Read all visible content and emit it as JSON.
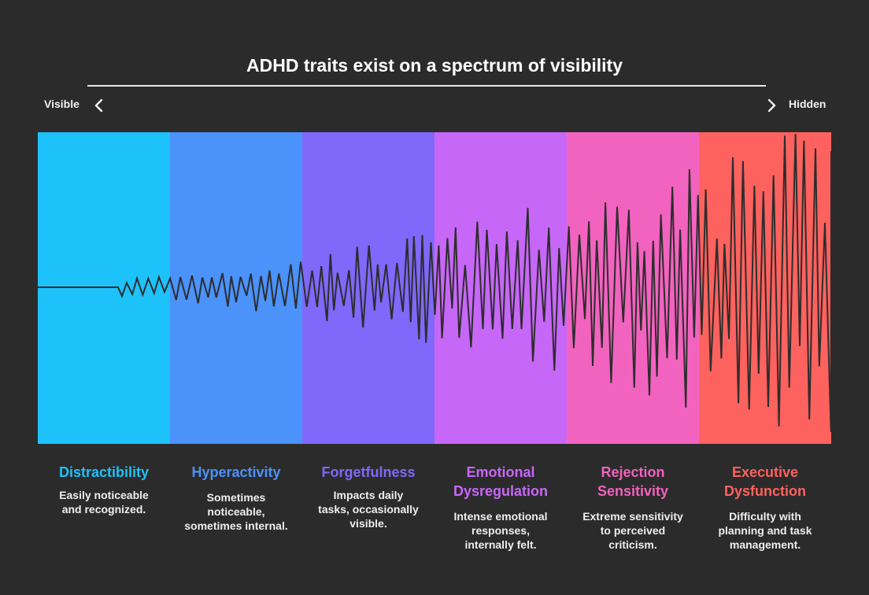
{
  "title": "ADHD traits exist on a spectrum of visibility",
  "scale": {
    "left_label": "Visible",
    "right_label": "Hidden",
    "left_icon": "chevron-left-icon",
    "right_icon": "chevron-right-icon"
  },
  "traits": [
    {
      "title": "Distractibility",
      "description": "Easily noticeable and recognized.",
      "color": "#1ec2fb",
      "title_color": "#1ec2fb"
    },
    {
      "title": "Hyperactivity",
      "description": "Sometimes noticeable, sometimes internal.",
      "color": "#4b92fb",
      "title_color": "#4b92fb"
    },
    {
      "title": "Forgetfulness",
      "description": "Impacts daily tasks, occasionally visible.",
      "color": "#8068fa",
      "title_color": "#8068fa"
    },
    {
      "title": "Emotional Dysregulation",
      "description": "Intense emotional responses, internally felt.",
      "color": "#c767f7",
      "title_color": "#c767f7"
    },
    {
      "title": "Rejection Sensitivity",
      "description": "Extreme sensitivity to perceived criticism.",
      "color": "#f263bf",
      "title_color": "#f263bf"
    },
    {
      "title": "Executive Dysfunction",
      "description": "Difficulty with planning and task management.",
      "color": "#fd625e",
      "title_color": "#fd625e"
    }
  ],
  "colors": {
    "background": "#2b2b2b",
    "wave": "#2d2d2d",
    "text": "#ffffff"
  }
}
